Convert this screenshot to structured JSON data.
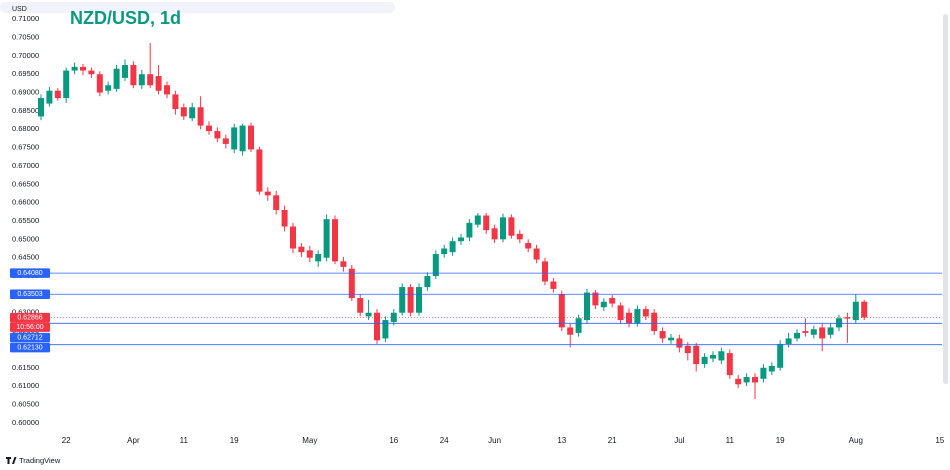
{
  "chart_data": {
    "type": "candlestick",
    "title": "NZD/USD, 1d",
    "y_label": "USD",
    "categories": [
      null,
      null,
      null,
      "22",
      null,
      null,
      null,
      null,
      null,
      null,
      null,
      "Apr",
      null,
      null,
      null,
      null,
      null,
      "11",
      null,
      null,
      null,
      null,
      null,
      "19",
      null,
      null,
      null,
      null,
      null,
      null,
      null,
      null,
      "May",
      null,
      null,
      null,
      null,
      null,
      null,
      null,
      null,
      null,
      "16",
      null,
      null,
      null,
      null,
      null,
      "24",
      null,
      null,
      null,
      null,
      null,
      "Jun",
      null,
      null,
      null,
      null,
      null,
      null,
      null,
      "13",
      null,
      null,
      null,
      null,
      null,
      "21",
      null,
      null,
      null,
      null,
      null,
      null,
      null,
      "Jul",
      null,
      null,
      null,
      null,
      null,
      "11",
      null,
      null,
      null,
      null,
      null,
      "19",
      null,
      null,
      null,
      null,
      null,
      null,
      null,
      null,
      "Aug",
      null,
      null,
      null,
      null,
      null,
      null,
      null,
      null,
      null,
      "15"
    ],
    "open": [
      0.6835,
      0.687,
      0.6905,
      0.6885,
      0.696,
      0.697,
      0.696,
      0.695,
      0.6905,
      0.691,
      0.694,
      0.6975,
      0.692,
      0.695,
      0.6945,
      0.692,
      0.6895,
      0.686,
      0.683,
      0.686,
      0.681,
      0.6795,
      0.6775,
      0.6745,
      0.674,
      0.681,
      0.6745,
      0.663,
      0.662,
      0.658,
      0.6535,
      0.648,
      0.647,
      0.644,
      0.645,
      0.6555,
      0.644,
      0.642,
      0.634,
      0.629,
      0.63,
      0.623,
      0.6275,
      0.63,
      0.637,
      0.63,
      0.637,
      0.64,
      0.646,
      0.6465,
      0.6495,
      0.6505,
      0.654,
      0.6565,
      0.653,
      0.65,
      0.656,
      0.6515,
      0.649,
      0.6475,
      0.644,
      0.6385,
      0.635,
      0.626,
      0.6245,
      0.628,
      0.6355,
      0.6315,
      0.634,
      0.632,
      0.63,
      0.627,
      0.631,
      0.63,
      0.625,
      0.6225,
      0.623,
      0.621,
      0.621,
      0.616,
      0.6175,
      0.617,
      0.619,
      0.612,
      0.611,
      0.6125,
      0.612,
      0.614,
      0.615,
      0.6215,
      0.623,
      0.625,
      0.624,
      0.626,
      0.624,
      0.626,
      0.6288,
      0.628,
      0.633,
      null,
      null,
      null,
      null,
      null,
      null,
      null,
      null,
      null
    ],
    "high": [
      0.6895,
      0.6915,
      0.6912,
      0.6968,
      0.6982,
      0.6978,
      0.6968,
      0.6958,
      0.693,
      0.6975,
      0.699,
      0.6985,
      0.6962,
      0.7035,
      0.6975,
      0.693,
      0.6905,
      0.687,
      0.6872,
      0.689,
      0.6822,
      0.6805,
      0.6785,
      0.6815,
      0.6815,
      0.6818,
      0.6752,
      0.6642,
      0.6632,
      0.6592,
      0.6545,
      0.649,
      0.6482,
      0.647,
      0.6568,
      0.6565,
      0.6452,
      0.643,
      0.635,
      0.6335,
      0.631,
      0.629,
      0.631,
      0.638,
      0.6378,
      0.638,
      0.641,
      0.647,
      0.6485,
      0.6505,
      0.6515,
      0.6555,
      0.6572,
      0.6572,
      0.654,
      0.657,
      0.6568,
      0.6525,
      0.65,
      0.6485,
      0.645,
      0.6395,
      0.636,
      0.627,
      0.6295,
      0.6365,
      0.6362,
      0.634,
      0.6348,
      0.6328,
      0.6312,
      0.632,
      0.6318,
      0.631,
      0.626,
      0.6242,
      0.624,
      0.622,
      0.6218,
      0.619,
      0.6195,
      0.6205,
      0.62,
      0.613,
      0.6135,
      0.6135,
      0.616,
      0.6165,
      0.6225,
      0.6245,
      0.6255,
      0.6285,
      0.6265,
      0.627,
      0.6272,
      0.6295,
      0.63,
      0.635,
      0.6335,
      null,
      null,
      null,
      null,
      null,
      null,
      null,
      null,
      null
    ],
    "low": [
      0.6825,
      0.6862,
      0.6878,
      0.6872,
      0.695,
      0.6948,
      0.694,
      0.689,
      0.6895,
      0.6902,
      0.6932,
      0.6912,
      0.691,
      0.6912,
      0.6895,
      0.6885,
      0.684,
      0.6825,
      0.6822,
      0.68,
      0.6785,
      0.6765,
      0.6748,
      0.6735,
      0.6728,
      0.6738,
      0.6622,
      0.6605,
      0.6568,
      0.6522,
      0.6462,
      0.6452,
      0.6438,
      0.6425,
      0.644,
      0.6432,
      0.6412,
      0.6332,
      0.629,
      0.628,
      0.6215,
      0.622,
      0.6265,
      0.6292,
      0.629,
      0.6292,
      0.636,
      0.6392,
      0.645,
      0.6455,
      0.6485,
      0.6495,
      0.6532,
      0.6515,
      0.649,
      0.6492,
      0.6502,
      0.649,
      0.6465,
      0.6435,
      0.6375,
      0.6355,
      0.625,
      0.6205,
      0.6235,
      0.627,
      0.631,
      0.6305,
      0.6315,
      0.627,
      0.626,
      0.6262,
      0.628,
      0.624,
      0.6218,
      0.6215,
      0.6192,
      0.617,
      0.614,
      0.615,
      0.6165,
      0.616,
      0.612,
      0.6095,
      0.61,
      0.6065,
      0.611,
      0.613,
      0.6142,
      0.6205,
      0.6222,
      0.6235,
      0.623,
      0.6195,
      0.623,
      0.625,
      0.6218,
      0.6272,
      0.628,
      null,
      null,
      null,
      null,
      null,
      null,
      null,
      null,
      null
    ],
    "close": [
      0.6885,
      0.6905,
      0.6885,
      0.696,
      0.697,
      0.696,
      0.695,
      0.69,
      0.692,
      0.6965,
      0.6975,
      0.692,
      0.695,
      0.692,
      0.6905,
      0.6895,
      0.6855,
      0.6835,
      0.686,
      0.681,
      0.6795,
      0.6775,
      0.676,
      0.6805,
      0.681,
      0.6745,
      0.663,
      0.662,
      0.658,
      0.6535,
      0.6475,
      0.6465,
      0.645,
      0.646,
      0.6555,
      0.644,
      0.6425,
      0.634,
      0.63,
      0.63,
      0.6225,
      0.628,
      0.63,
      0.637,
      0.63,
      0.637,
      0.64,
      0.646,
      0.6475,
      0.6495,
      0.6505,
      0.6545,
      0.6565,
      0.6525,
      0.65,
      0.656,
      0.651,
      0.65,
      0.6475,
      0.6445,
      0.6385,
      0.6365,
      0.626,
      0.624,
      0.6285,
      0.6355,
      0.632,
      0.633,
      0.6325,
      0.628,
      0.627,
      0.631,
      0.629,
      0.625,
      0.623,
      0.6232,
      0.6205,
      0.619,
      0.616,
      0.618,
      0.6185,
      0.6195,
      0.613,
      0.6105,
      0.6125,
      0.611,
      0.615,
      0.6155,
      0.6215,
      0.623,
      0.6245,
      0.6245,
      0.6255,
      0.623,
      0.626,
      0.6285,
      0.6284,
      0.633,
      0.6287,
      null,
      null,
      null,
      null,
      null,
      null,
      null,
      null,
      null
    ],
    "up_color": "#089981",
    "down_color": "#f23645",
    "ylim": [
      0.5975,
      0.7125
    ],
    "yticks": [
      {
        "value": 0.6,
        "label": "0.60000"
      },
      {
        "value": 0.605,
        "label": "0.60500"
      },
      {
        "value": 0.61,
        "label": "0.61000"
      },
      {
        "value": 0.615,
        "label": "0.61500"
      },
      {
        "value": 0.62,
        "label": "0.62000"
      },
      {
        "value": 0.625,
        "label": "0.62500"
      },
      {
        "value": 0.63,
        "label": "0.63000"
      },
      {
        "value": 0.635,
        "label": "0.63500"
      },
      {
        "value": 0.64,
        "label": "0.64000"
      },
      {
        "value": 0.645,
        "label": "0.64500"
      },
      {
        "value": 0.65,
        "label": "0.65000"
      },
      {
        "value": 0.655,
        "label": "0.65500"
      },
      {
        "value": 0.66,
        "label": "0.66000"
      },
      {
        "value": 0.665,
        "label": "0.66500"
      },
      {
        "value": 0.67,
        "label": "0.67000"
      },
      {
        "value": 0.675,
        "label": "0.67500"
      },
      {
        "value": 0.68,
        "label": "0.68000"
      },
      {
        "value": 0.685,
        "label": "0.68500"
      },
      {
        "value": 0.69,
        "label": "0.69000"
      },
      {
        "value": 0.695,
        "label": "0.69500"
      },
      {
        "value": 0.7,
        "label": "0.70000"
      },
      {
        "value": 0.705,
        "label": "0.70500"
      },
      {
        "value": 0.71,
        "label": "0.71000"
      }
    ],
    "price_lines": [
      {
        "value": 0.6408,
        "label": "0.64080"
      },
      {
        "value": 0.63503,
        "label": "0.63503"
      },
      {
        "value": 0.62712,
        "label": "0.62712"
      },
      {
        "value": 0.6213,
        "label": "0.62130"
      }
    ],
    "price_line_color": "#2962ff",
    "last_price": {
      "value": 0.62866,
      "label": "0.62866"
    },
    "countdown": "10:56:00",
    "brand": "TradingView"
  }
}
